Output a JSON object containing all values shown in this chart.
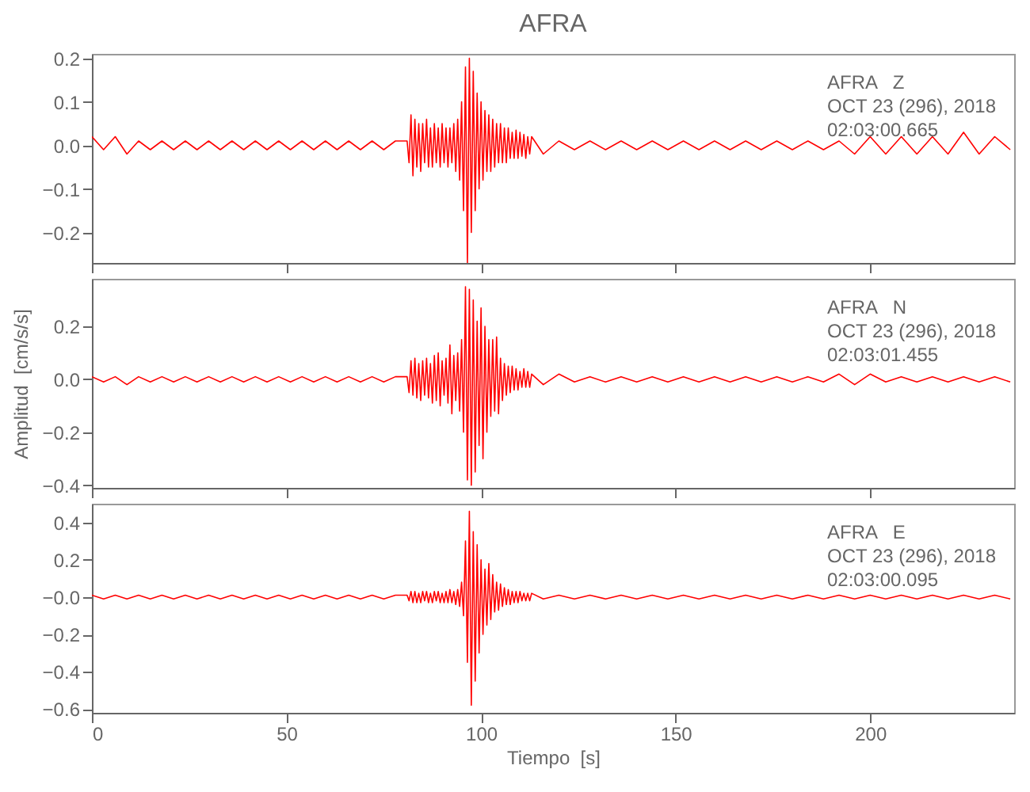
{
  "chart_data": [
    {
      "type": "line",
      "title": "AFRA",
      "annotations": [
        "AFRA   Z",
        "OCT 23 (296), 2018",
        "02:03:00.665"
      ],
      "x": [
        0,
        3,
        6,
        9,
        12,
        15,
        18,
        21,
        24,
        27,
        30,
        33,
        36,
        39,
        42,
        45,
        48,
        51,
        54,
        57,
        60,
        63,
        66,
        69,
        72,
        75,
        78,
        81,
        81.5,
        82,
        82.5,
        83,
        83.5,
        84,
        84.5,
        85,
        85.5,
        86,
        86.5,
        87,
        87.5,
        88,
        88.5,
        89,
        89.5,
        90,
        90.5,
        91,
        91.5,
        92,
        92.5,
        93,
        93.5,
        94,
        94.5,
        95,
        95.5,
        96,
        96.5,
        97,
        97.5,
        98,
        98.5,
        99,
        99.5,
        100,
        100.5,
        101,
        101.5,
        102,
        102.5,
        103,
        103.5,
        104,
        104.5,
        105,
        105.5,
        106,
        106.5,
        107,
        107.5,
        108,
        108.5,
        109,
        109.5,
        110,
        110.5,
        111,
        111.5,
        112,
        112.5,
        113,
        116,
        120,
        124,
        128,
        132,
        136,
        140,
        144,
        148,
        152,
        156,
        160,
        164,
        168,
        172,
        176,
        180,
        184,
        188,
        192,
        196,
        200,
        204,
        208,
        212,
        216,
        220,
        224,
        228,
        232,
        236
      ],
      "series": [
        {
          "color": "#ff0000",
          "values": [
            0.02,
            -0.01,
            0.02,
            -0.02,
            0.01,
            -0.01,
            0.01,
            -0.01,
            0.01,
            -0.01,
            0.01,
            -0.01,
            0.01,
            -0.01,
            0.01,
            -0.01,
            0.01,
            -0.01,
            0.01,
            -0.01,
            0.01,
            -0.01,
            0.01,
            -0.01,
            0.01,
            -0.01,
            0.01,
            0.01,
            -0.04,
            0.07,
            -0.07,
            0.06,
            -0.05,
            0.05,
            -0.06,
            0.05,
            -0.04,
            0.06,
            -0.05,
            0.04,
            -0.05,
            0.05,
            -0.04,
            0.04,
            -0.05,
            0.05,
            -0.04,
            0.04,
            -0.05,
            0.04,
            -0.04,
            0.05,
            -0.06,
            0.06,
            -0.08,
            0.1,
            -0.15,
            0.18,
            -0.27,
            0.2,
            -0.2,
            0.17,
            -0.15,
            0.12,
            -0.1,
            0.1,
            -0.08,
            0.08,
            -0.06,
            0.07,
            -0.06,
            0.06,
            -0.05,
            0.05,
            -0.04,
            0.05,
            -0.04,
            0.04,
            -0.04,
            0.04,
            -0.03,
            0.03,
            -0.03,
            0.035,
            -0.03,
            0.03,
            -0.025,
            0.025,
            -0.03,
            0.02,
            -0.02,
            0.02,
            -0.02,
            0.01,
            -0.01,
            0.01,
            -0.01,
            0.01,
            -0.01,
            0.01,
            -0.01,
            0.01,
            -0.01,
            0.01,
            -0.01,
            0.01,
            -0.01,
            0.01,
            -0.01,
            0.01,
            -0.01,
            0.01,
            -0.02,
            0.02,
            -0.02,
            0.02,
            -0.02,
            0.02,
            -0.02,
            0.03,
            -0.02,
            0.02,
            -0.01
          ]
        }
      ],
      "xlim": [
        0,
        237
      ],
      "xticks": [
        0,
        50,
        100,
        150,
        200
      ],
      "ylim": [
        -0.27,
        0.21
      ],
      "yticks": [
        {
          "value": -0.2,
          "label": "−0.2"
        },
        {
          "value": -0.1,
          "label": "−0.1"
        },
        {
          "value": 0,
          "label": "0.0"
        },
        {
          "value": 0.1,
          "label": "0.1"
        },
        {
          "value": 0.2,
          "label": "0.2"
        }
      ],
      "tick_labels": "y"
    },
    {
      "type": "line",
      "ylabel": "Amplitud  [cm/s/s]",
      "annotations": [
        "AFRA   N",
        "OCT 23 (296), 2018",
        "02:03:01.455"
      ],
      "x": [
        0,
        3,
        6,
        9,
        12,
        15,
        18,
        21,
        24,
        27,
        30,
        33,
        36,
        39,
        42,
        45,
        48,
        51,
        54,
        57,
        60,
        63,
        66,
        69,
        72,
        75,
        78,
        81,
        81.5,
        82,
        82.5,
        83,
        83.5,
        84,
        84.5,
        85,
        85.5,
        86,
        86.5,
        87,
        87.5,
        88,
        88.5,
        89,
        89.5,
        90,
        90.5,
        91,
        91.5,
        92,
        92.5,
        93,
        93.5,
        94,
        94.5,
        95,
        95.5,
        96,
        96.5,
        97,
        97.5,
        98,
        98.5,
        99,
        99.5,
        100,
        100.5,
        101,
        101.5,
        102,
        102.5,
        103,
        103.5,
        104,
        104.5,
        105,
        105.5,
        106,
        106.5,
        107,
        107.5,
        108,
        108.5,
        109,
        109.5,
        110,
        110.5,
        111,
        111.5,
        112,
        112.5,
        113,
        116,
        120,
        124,
        128,
        132,
        136,
        140,
        144,
        148,
        152,
        156,
        160,
        164,
        168,
        172,
        176,
        180,
        184,
        188,
        192,
        196,
        200,
        204,
        208,
        212,
        216,
        220,
        224,
        228,
        232,
        236
      ],
      "series": [
        {
          "color": "#ff0000",
          "values": [
            0.01,
            -0.01,
            0.01,
            -0.02,
            0.01,
            -0.01,
            0.01,
            -0.01,
            0.01,
            -0.01,
            0.01,
            -0.01,
            0.01,
            -0.01,
            0.01,
            -0.01,
            0.01,
            -0.01,
            0.01,
            -0.01,
            0.01,
            -0.01,
            0.01,
            -0.01,
            0.01,
            -0.01,
            0.01,
            0.01,
            -0.05,
            0.07,
            -0.06,
            0.08,
            -0.07,
            0.06,
            -0.08,
            0.07,
            -0.06,
            0.08,
            -0.07,
            0.06,
            -0.09,
            0.09,
            -0.08,
            0.1,
            -0.1,
            0.07,
            -0.06,
            0.08,
            -0.09,
            0.13,
            -0.13,
            0.09,
            -0.08,
            0.1,
            -0.12,
            0.15,
            -0.2,
            0.35,
            -0.38,
            0.34,
            -0.4,
            0.3,
            -0.35,
            0.22,
            -0.25,
            0.27,
            -0.3,
            0.2,
            -0.2,
            0.15,
            -0.14,
            0.15,
            -0.12,
            0.16,
            -0.13,
            0.08,
            -0.08,
            0.06,
            -0.06,
            0.05,
            -0.05,
            0.05,
            -0.04,
            0.04,
            -0.04,
            0.03,
            -0.03,
            0.04,
            -0.03,
            0.03,
            -0.03,
            0.02,
            -0.02,
            0.02,
            -0.01,
            0.01,
            -0.01,
            0.01,
            -0.01,
            0.01,
            -0.01,
            0.01,
            -0.01,
            0.01,
            -0.01,
            0.01,
            -0.01,
            0.01,
            -0.01,
            0.01,
            -0.01,
            0.02,
            -0.02,
            0.02,
            -0.01,
            0.01,
            -0.01,
            0.01,
            -0.01,
            0.01,
            -0.01,
            0.01,
            -0.01
          ]
        }
      ],
      "xlim": [
        0,
        237
      ],
      "xticks": [
        0,
        50,
        100,
        150,
        200
      ],
      "ylim": [
        -0.41,
        0.38
      ],
      "yticks": [
        {
          "value": -0.4,
          "label": "−0.4"
        },
        {
          "value": -0.2,
          "label": "−0.2"
        },
        {
          "value": 0,
          "label": "0.0"
        },
        {
          "value": 0.2,
          "label": "0.2"
        }
      ],
      "tick_labels": "y"
    },
    {
      "type": "line",
      "xlabel": "Tiempo  [s]",
      "annotations": [
        "AFRA   E",
        "OCT 23 (296), 2018",
        "02:03:00.095"
      ],
      "x": [
        0,
        3,
        6,
        9,
        12,
        15,
        18,
        21,
        24,
        27,
        30,
        33,
        36,
        39,
        42,
        45,
        48,
        51,
        54,
        57,
        60,
        63,
        66,
        69,
        72,
        75,
        78,
        81,
        81.5,
        82,
        82.5,
        83,
        83.5,
        84,
        84.5,
        85,
        85.5,
        86,
        86.5,
        87,
        87.5,
        88,
        88.5,
        89,
        89.5,
        90,
        90.5,
        91,
        91.5,
        92,
        92.5,
        93,
        93.5,
        94,
        94.5,
        95,
        95.5,
        96,
        96.5,
        97,
        97.5,
        98,
        98.5,
        99,
        99.5,
        100,
        100.5,
        101,
        101.5,
        102,
        102.5,
        103,
        103.5,
        104,
        104.5,
        105,
        105.5,
        106,
        106.5,
        107,
        107.5,
        108,
        108.5,
        109,
        109.5,
        110,
        110.5,
        111,
        111.5,
        112,
        112.5,
        113,
        116,
        120,
        124,
        128,
        132,
        136,
        140,
        144,
        148,
        152,
        156,
        160,
        164,
        168,
        172,
        176,
        180,
        184,
        188,
        192,
        196,
        200,
        204,
        208,
        212,
        216,
        220,
        224,
        228,
        232,
        236
      ],
      "series": [
        {
          "color": "#ff0000",
          "values": [
            0.01,
            -0.01,
            0.01,
            -0.01,
            0.01,
            -0.01,
            0.01,
            -0.01,
            0.01,
            -0.01,
            0.01,
            -0.01,
            0.01,
            -0.01,
            0.01,
            -0.01,
            0.01,
            -0.01,
            0.01,
            -0.01,
            0.01,
            -0.01,
            0.01,
            -0.01,
            0.01,
            -0.01,
            0.01,
            0.01,
            -0.02,
            0.03,
            -0.03,
            0.03,
            -0.03,
            0.02,
            -0.03,
            0.03,
            -0.02,
            0.03,
            -0.03,
            0.02,
            -0.03,
            0.03,
            -0.02,
            0.03,
            -0.03,
            0.02,
            -0.03,
            0.03,
            -0.03,
            0.04,
            -0.03,
            0.03,
            -0.04,
            0.04,
            -0.05,
            0.08,
            -0.1,
            0.3,
            -0.35,
            0.46,
            -0.58,
            0.35,
            -0.45,
            0.28,
            -0.3,
            0.2,
            -0.2,
            0.15,
            -0.15,
            0.18,
            -0.12,
            0.12,
            -0.08,
            0.08,
            -0.07,
            0.07,
            -0.05,
            0.05,
            -0.04,
            0.04,
            -0.04,
            0.03,
            -0.03,
            0.03,
            -0.03,
            0.03,
            -0.02,
            0.02,
            -0.02,
            0.02,
            -0.02,
            0.02,
            -0.01,
            0.01,
            -0.01,
            0.01,
            -0.01,
            0.01,
            -0.01,
            0.01,
            -0.01,
            0.01,
            -0.01,
            0.01,
            -0.01,
            0.01,
            -0.01,
            0.01,
            -0.01,
            0.01,
            -0.01,
            0.01,
            -0.01,
            0.01,
            -0.01,
            0.01,
            -0.01,
            0.01,
            -0.01,
            0.01,
            -0.01,
            0.01,
            -0.01
          ]
        }
      ],
      "xlim": [
        0,
        237
      ],
      "xticks": [
        0,
        50,
        100,
        150,
        200
      ],
      "ylim": [
        -0.62,
        0.5
      ],
      "yticks": [
        {
          "value": -0.6,
          "label": "−0.6"
        },
        {
          "value": -0.4,
          "label": "−0.4"
        },
        {
          "value": -0.2,
          "label": "−0.2"
        },
        {
          "value": 0,
          "label": "−0.0"
        },
        {
          "value": 0.2,
          "label": "0.2"
        },
        {
          "value": 0.4,
          "label": "0.4"
        }
      ]
    }
  ]
}
